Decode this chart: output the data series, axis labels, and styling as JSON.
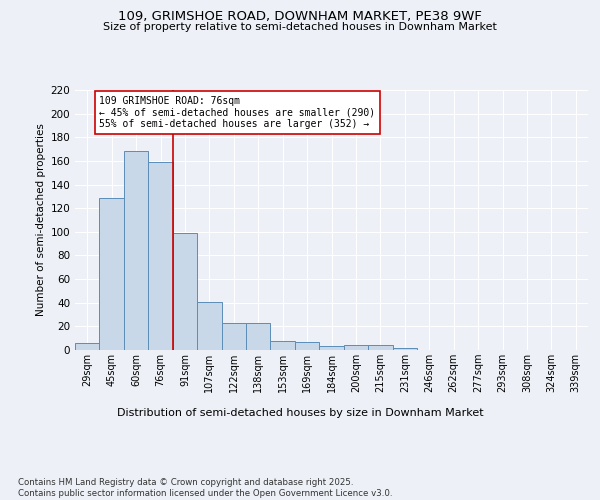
{
  "title1": "109, GRIMSHOE ROAD, DOWNHAM MARKET, PE38 9WF",
  "title2": "Size of property relative to semi-detached houses in Downham Market",
  "xlabel": "Distribution of semi-detached houses by size in Downham Market",
  "ylabel": "Number of semi-detached properties",
  "footnote": "Contains HM Land Registry data © Crown copyright and database right 2025.\nContains public sector information licensed under the Open Government Licence v3.0.",
  "categories": [
    "29sqm",
    "45sqm",
    "60sqm",
    "76sqm",
    "91sqm",
    "107sqm",
    "122sqm",
    "138sqm",
    "153sqm",
    "169sqm",
    "184sqm",
    "200sqm",
    "215sqm",
    "231sqm",
    "246sqm",
    "262sqm",
    "277sqm",
    "293sqm",
    "308sqm",
    "324sqm",
    "339sqm"
  ],
  "values": [
    6,
    129,
    168,
    159,
    99,
    41,
    23,
    23,
    8,
    7,
    3,
    4,
    4,
    2,
    0,
    0,
    0,
    0,
    0,
    0,
    0
  ],
  "bar_color": "#c8d8e8",
  "bar_edge_color": "#5b8db8",
  "highlight_index": 3,
  "highlight_line_color": "#cc0000",
  "annotation_text": "109 GRIMSHOE ROAD: 76sqm\n← 45% of semi-detached houses are smaller (290)\n55% of semi-detached houses are larger (352) →",
  "annotation_box_color": "#ffffff",
  "annotation_box_edge": "#cc0000",
  "ylim": [
    0,
    220
  ],
  "yticks": [
    0,
    20,
    40,
    60,
    80,
    100,
    120,
    140,
    160,
    180,
    200,
    220
  ],
  "background_color": "#edf1f7",
  "plot_background": "#edf1f7",
  "grid_color": "#ffffff"
}
